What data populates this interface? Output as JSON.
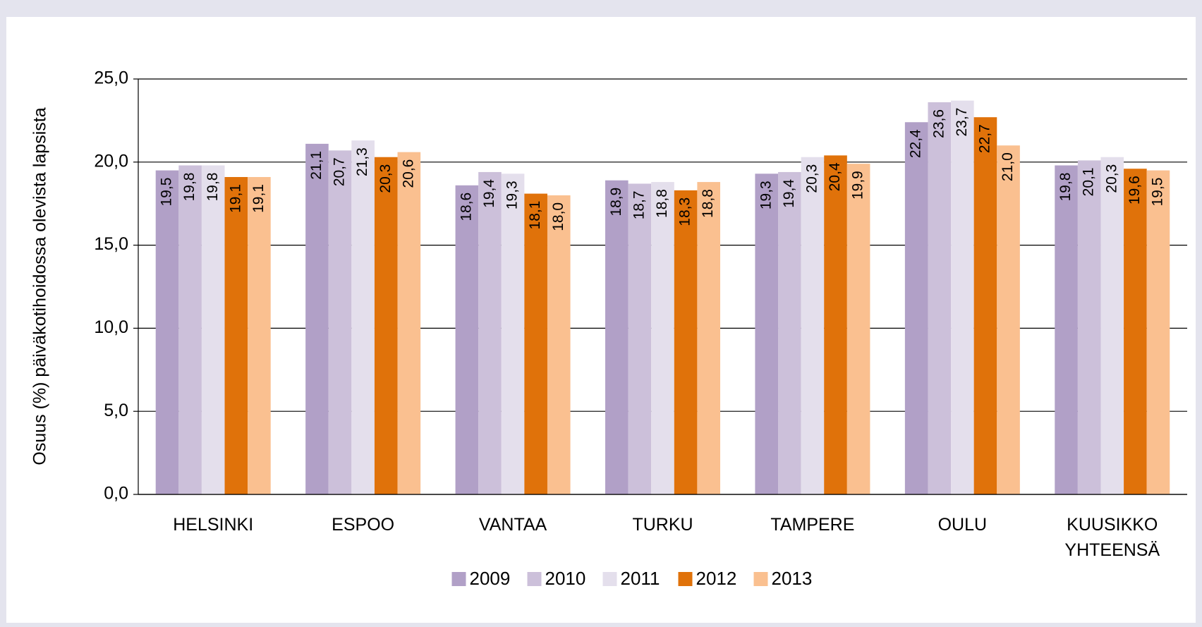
{
  "chart_data": {
    "type": "bar",
    "y_label": "Osuus (%) päiväkotihoidossa olevista lapsista",
    "categories": [
      "HELSINKI",
      "ESPOO",
      "VANTAA",
      "TURKU",
      "TAMPERE",
      "OULU",
      "KUUSIKKO\nYHTEENSÄ"
    ],
    "series": [
      {
        "name": "2009",
        "color": "#b1a0c7",
        "values": [
          19.5,
          21.1,
          18.6,
          18.9,
          19.3,
          22.4,
          19.8
        ],
        "value_labels": [
          "19,5",
          "21,1",
          "18,6",
          "18,9",
          "19,3",
          "22,4",
          "19,8"
        ]
      },
      {
        "name": "2010",
        "color": "#ccc0da",
        "values": [
          19.8,
          20.7,
          19.4,
          18.7,
          19.4,
          23.6,
          20.1
        ],
        "value_labels": [
          "19,8",
          "20,7",
          "19,4",
          "18,7",
          "19,4",
          "23,6",
          "20,1"
        ]
      },
      {
        "name": "2011",
        "color": "#e4dfec",
        "values": [
          19.8,
          21.3,
          19.3,
          18.8,
          20.3,
          23.7,
          20.3
        ],
        "value_labels": [
          "19,8",
          "21,3",
          "19,3",
          "18,8",
          "20,3",
          "23,7",
          "20,3"
        ]
      },
      {
        "name": "2012",
        "color": "#e0720a",
        "values": [
          19.1,
          20.3,
          18.1,
          18.3,
          20.4,
          22.7,
          19.6
        ],
        "value_labels": [
          "19,1",
          "20,3",
          "18,1",
          "18,3",
          "20,4",
          "22,7",
          "19,6"
        ]
      },
      {
        "name": "2013",
        "color": "#fac090",
        "values": [
          19.1,
          20.6,
          18.0,
          18.8,
          19.9,
          21.0,
          19.5
        ],
        "value_labels": [
          "19,1",
          "20,6",
          "18,0",
          "18,8",
          "19,9",
          "21,0",
          "19,5"
        ]
      }
    ],
    "ylim": [
      0,
      25
    ],
    "yticks": [
      {
        "value": 0,
        "label": "0,0"
      },
      {
        "value": 5,
        "label": "5,0"
      },
      {
        "value": 10,
        "label": "10,0"
      },
      {
        "value": 15,
        "label": "15,0"
      },
      {
        "value": 20,
        "label": "20,0"
      },
      {
        "value": 25,
        "label": "25,0"
      }
    ],
    "grid": true,
    "legend": "bottom"
  }
}
